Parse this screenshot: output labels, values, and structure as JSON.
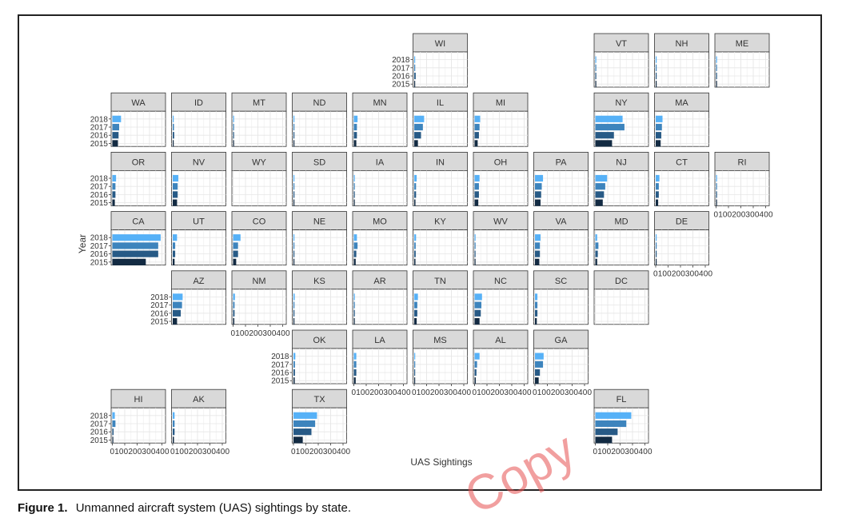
{
  "caption": {
    "label": "Figure 1.",
    "text": "Unmanned aircraft system (UAS) sightings by state."
  },
  "watermark": "Copy",
  "chart_data": {
    "type": "bar",
    "orientation": "horizontal",
    "xlabel": "UAS Sightings",
    "ylabel": "Year",
    "xlim": [
      0,
      400
    ],
    "xticks": [
      0,
      100,
      200,
      300,
      400
    ],
    "years": [
      "2018",
      "2017",
      "2016",
      "2015"
    ],
    "colors": {
      "2018": "#56B1F7",
      "2017": "#3D84BD",
      "2016": "#275A86",
      "2015": "#132B43"
    },
    "grid": true,
    "states": [
      {
        "name": "WI",
        "row": 0,
        "col": 5,
        "values": [
          5,
          8,
          12,
          6
        ],
        "show_y": true
      },
      {
        "name": "VT",
        "row": 0,
        "col": 8,
        "values": [
          2,
          3,
          2,
          1
        ]
      },
      {
        "name": "NH",
        "row": 0,
        "col": 9,
        "values": [
          3,
          5,
          4,
          2
        ]
      },
      {
        "name": "ME",
        "row": 0,
        "col": 10,
        "values": [
          3,
          4,
          5,
          3
        ]
      },
      {
        "name": "WA",
        "row": 1,
        "col": 0,
        "values": [
          70,
          55,
          50,
          45
        ],
        "show_y": true
      },
      {
        "name": "ID",
        "row": 1,
        "col": 1,
        "values": [
          8,
          10,
          12,
          8
        ]
      },
      {
        "name": "MT",
        "row": 1,
        "col": 2,
        "values": [
          5,
          6,
          7,
          4
        ]
      },
      {
        "name": "ND",
        "row": 1,
        "col": 3,
        "values": [
          3,
          4,
          3,
          2
        ]
      },
      {
        "name": "MN",
        "row": 1,
        "col": 4,
        "values": [
          30,
          25,
          25,
          20
        ]
      },
      {
        "name": "IL",
        "row": 1,
        "col": 5,
        "values": [
          80,
          70,
          55,
          30
        ]
      },
      {
        "name": "MI",
        "row": 1,
        "col": 6,
        "values": [
          45,
          40,
          35,
          25
        ]
      },
      {
        "name": "NY",
        "row": 1,
        "col": 8,
        "values": [
          220,
          235,
          150,
          135
        ]
      },
      {
        "name": "MA",
        "row": 1,
        "col": 9,
        "values": [
          55,
          50,
          45,
          40
        ]
      },
      {
        "name": "OR",
        "row": 2,
        "col": 0,
        "values": [
          30,
          25,
          25,
          20
        ],
        "show_y": true
      },
      {
        "name": "NV",
        "row": 2,
        "col": 1,
        "values": [
          45,
          40,
          40,
          35
        ]
      },
      {
        "name": "WY",
        "row": 2,
        "col": 2,
        "values": [
          0,
          0,
          0,
          0
        ]
      },
      {
        "name": "SD",
        "row": 2,
        "col": 3,
        "values": [
          3,
          3,
          8,
          3
        ]
      },
      {
        "name": "IA",
        "row": 2,
        "col": 4,
        "values": [
          5,
          5,
          6,
          5
        ]
      },
      {
        "name": "IN",
        "row": 2,
        "col": 5,
        "values": [
          20,
          15,
          15,
          10
        ]
      },
      {
        "name": "OH",
        "row": 2,
        "col": 6,
        "values": [
          40,
          35,
          35,
          30
        ]
      },
      {
        "name": "PA",
        "row": 2,
        "col": 7,
        "values": [
          65,
          55,
          50,
          45
        ]
      },
      {
        "name": "NJ",
        "row": 2,
        "col": 8,
        "values": [
          95,
          80,
          70,
          60
        ]
      },
      {
        "name": "CT",
        "row": 2,
        "col": 9,
        "values": [
          30,
          25,
          25,
          20
        ]
      },
      {
        "name": "RI",
        "row": 2,
        "col": 10,
        "values": [
          5,
          6,
          5,
          4
        ],
        "show_x": true
      },
      {
        "name": "CA",
        "row": 3,
        "col": 0,
        "values": [
          390,
          370,
          370,
          270
        ],
        "show_y": true
      },
      {
        "name": "UT",
        "row": 3,
        "col": 1,
        "values": [
          35,
          20,
          20,
          15
        ]
      },
      {
        "name": "CO",
        "row": 3,
        "col": 2,
        "values": [
          60,
          40,
          40,
          25
        ]
      },
      {
        "name": "NE",
        "row": 3,
        "col": 3,
        "values": [
          5,
          5,
          5,
          4
        ]
      },
      {
        "name": "MO",
        "row": 3,
        "col": 4,
        "values": [
          25,
          30,
          20,
          15
        ]
      },
      {
        "name": "KY",
        "row": 3,
        "col": 5,
        "values": [
          15,
          12,
          12,
          10
        ]
      },
      {
        "name": "WV",
        "row": 3,
        "col": 6,
        "values": [
          8,
          8,
          6,
          5
        ]
      },
      {
        "name": "VA",
        "row": 3,
        "col": 7,
        "values": [
          45,
          40,
          40,
          35
        ]
      },
      {
        "name": "MD",
        "row": 3,
        "col": 8,
        "values": [
          15,
          25,
          20,
          15
        ]
      },
      {
        "name": "DE",
        "row": 3,
        "col": 9,
        "values": [
          5,
          5,
          4,
          3
        ],
        "show_x": true
      },
      {
        "name": "AZ",
        "row": 4,
        "col": 1,
        "values": [
          80,
          75,
          65,
          35
        ],
        "show_y": true
      },
      {
        "name": "NM",
        "row": 4,
        "col": 2,
        "values": [
          15,
          12,
          12,
          10
        ],
        "show_x": true
      },
      {
        "name": "KS",
        "row": 4,
        "col": 3,
        "values": [
          10,
          8,
          8,
          6
        ]
      },
      {
        "name": "AR",
        "row": 4,
        "col": 4,
        "values": [
          8,
          8,
          8,
          6
        ]
      },
      {
        "name": "TN",
        "row": 4,
        "col": 5,
        "values": [
          30,
          25,
          25,
          20
        ]
      },
      {
        "name": "NC",
        "row": 4,
        "col": 6,
        "values": [
          60,
          55,
          50,
          40
        ]
      },
      {
        "name": "SC",
        "row": 4,
        "col": 7,
        "values": [
          20,
          20,
          20,
          15
        ]
      },
      {
        "name": "DC",
        "row": 4,
        "col": 8,
        "values": [
          0,
          0,
          0,
          0
        ]
      },
      {
        "name": "OK",
        "row": 5,
        "col": 3,
        "values": [
          15,
          12,
          12,
          10
        ],
        "show_y": true
      },
      {
        "name": "LA",
        "row": 5,
        "col": 4,
        "values": [
          20,
          20,
          20,
          15
        ],
        "show_x": true
      },
      {
        "name": "MS",
        "row": 5,
        "col": 5,
        "values": [
          8,
          8,
          6,
          5
        ],
        "show_x": true
      },
      {
        "name": "AL",
        "row": 5,
        "col": 6,
        "values": [
          40,
          20,
          15,
          10
        ],
        "show_x": true
      },
      {
        "name": "GA",
        "row": 5,
        "col": 7,
        "values": [
          70,
          65,
          40,
          30
        ],
        "show_x": true
      },
      {
        "name": "HI",
        "row": 6,
        "col": 0,
        "values": [
          20,
          25,
          10,
          5
        ],
        "show_y": true,
        "show_x": true
      },
      {
        "name": "AK",
        "row": 6,
        "col": 1,
        "values": [
          15,
          15,
          15,
          10
        ],
        "show_x": true
      },
      {
        "name": "TX",
        "row": 6,
        "col": 3,
        "values": [
          190,
          175,
          145,
          75
        ],
        "show_x": true
      },
      {
        "name": "FL",
        "row": 6,
        "col": 8,
        "values": [
          290,
          250,
          180,
          135
        ],
        "show_x": true
      }
    ]
  }
}
